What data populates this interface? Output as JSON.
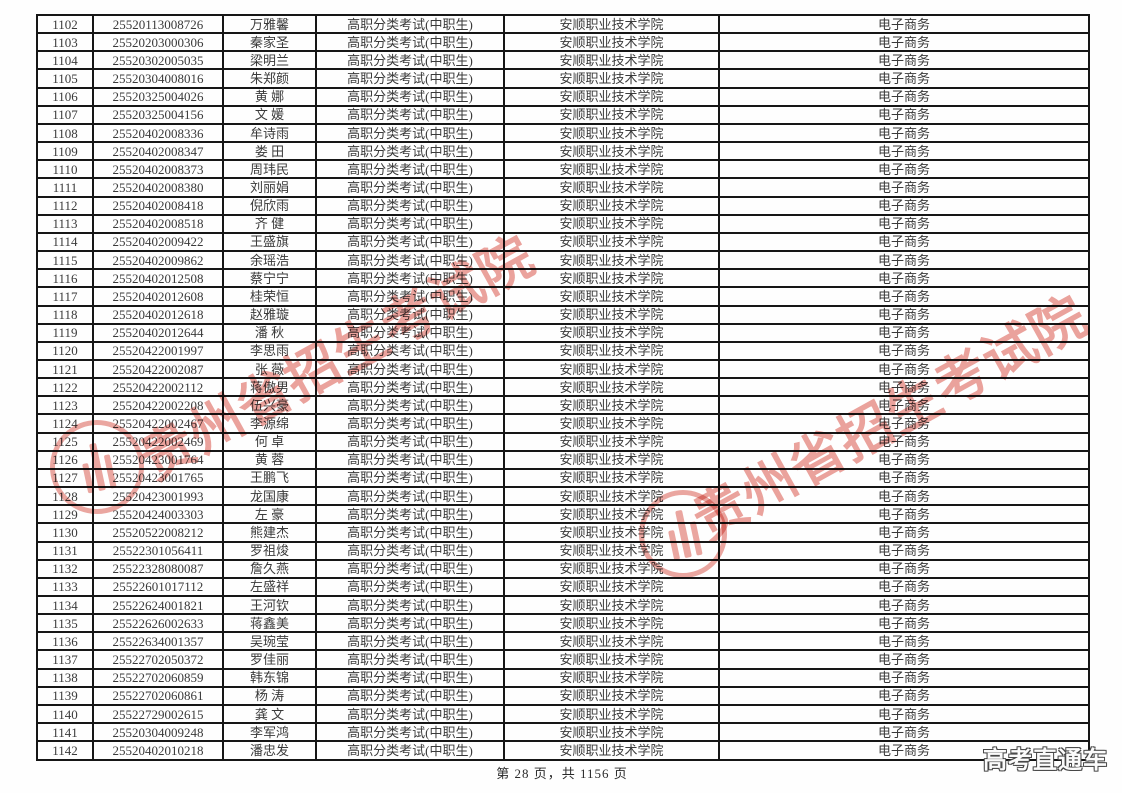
{
  "page": {
    "footer": "第 28 页，共 1156 页",
    "brand_overlay": "高考直通车",
    "watermark": {
      "text": "贵州省招生考试院",
      "color": "#d84f44",
      "instances": 2
    }
  },
  "table": {
    "shared": {
      "exam_type": "高职分类考试(中职生)",
      "college": "安顺职业技术学院",
      "major": "电子商务"
    },
    "rows": [
      [
        "1102",
        "25520113008726",
        "万雅馨"
      ],
      [
        "1103",
        "25520203000306",
        "秦家圣"
      ],
      [
        "1104",
        "25520302005035",
        "梁明兰"
      ],
      [
        "1105",
        "25520304008016",
        "朱郑颜"
      ],
      [
        "1106",
        "25520325004026",
        "黄 娜"
      ],
      [
        "1107",
        "25520325004156",
        "文 媛"
      ],
      [
        "1108",
        "25520402008336",
        "牟诗雨"
      ],
      [
        "1109",
        "25520402008347",
        "娄 田"
      ],
      [
        "1110",
        "25520402008373",
        "周玮民"
      ],
      [
        "1111",
        "25520402008380",
        "刘丽娟"
      ],
      [
        "1112",
        "25520402008418",
        "倪欣雨"
      ],
      [
        "1113",
        "25520402008518",
        "齐 健"
      ],
      [
        "1114",
        "25520402009422",
        "王盛旗"
      ],
      [
        "1115",
        "25520402009862",
        "余瑶浩"
      ],
      [
        "1116",
        "25520402012508",
        "蔡宁宁"
      ],
      [
        "1117",
        "25520402012608",
        "桂荣恒"
      ],
      [
        "1118",
        "25520402012618",
        "赵雅璇"
      ],
      [
        "1119",
        "25520402012644",
        "潘 秋"
      ],
      [
        "1120",
        "25520422001997",
        "李思雨"
      ],
      [
        "1121",
        "25520422002087",
        "张 薇"
      ],
      [
        "1122",
        "25520422002112",
        "蒋傲男"
      ],
      [
        "1123",
        "25520422002208",
        "伍兴豪"
      ],
      [
        "1124",
        "25520422002467",
        "李源绵"
      ],
      [
        "1125",
        "25520422002469",
        "何 卓"
      ],
      [
        "1126",
        "25520423001764",
        "黄 蓉"
      ],
      [
        "1127",
        "25520423001765",
        "王鹏飞"
      ],
      [
        "1128",
        "25520423001993",
        "龙国康"
      ],
      [
        "1129",
        "25520424003303",
        "左 豪"
      ],
      [
        "1130",
        "25520522008212",
        "熊建杰"
      ],
      [
        "1131",
        "25522301056411",
        "罗祖焌"
      ],
      [
        "1132",
        "25522328080087",
        "詹久燕"
      ],
      [
        "1133",
        "25522601017112",
        "左盛祥"
      ],
      [
        "1134",
        "25522624001821",
        "王河钦"
      ],
      [
        "1135",
        "25522626002633",
        "蒋鑫美"
      ],
      [
        "1136",
        "25522634001357",
        "吴琬莹"
      ],
      [
        "1137",
        "25522702050372",
        "罗佳丽"
      ],
      [
        "1138",
        "25522702060859",
        "韩东锦"
      ],
      [
        "1139",
        "25522702060861",
        "杨 涛"
      ],
      [
        "1140",
        "25522729002615",
        "龚 文"
      ],
      [
        "1141",
        "25520304009248",
        "李军鸿"
      ],
      [
        "1142",
        "25520402010218",
        "潘忠发"
      ]
    ]
  }
}
